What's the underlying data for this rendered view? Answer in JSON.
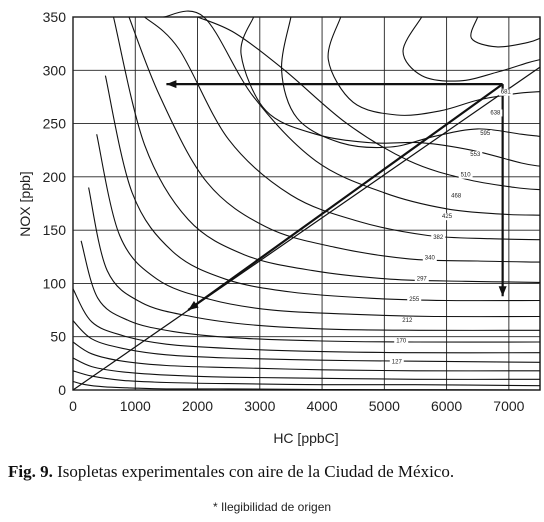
{
  "chart_data": {
    "type": "line",
    "xlabel": "HC [ppbC]",
    "ylabel": "NOX [ppb]",
    "xlim": [
      0,
      7500
    ],
    "ylim": [
      0,
      350
    ],
    "xticks": [
      "0",
      "1000",
      "2000",
      "3000",
      "4000",
      "5000",
      "6000",
      "7000"
    ],
    "yticks": [
      "0",
      "50",
      "100",
      "150",
      "200",
      "250",
      "300",
      "350"
    ],
    "grid": true,
    "isopleth_labels": [
      "127",
      "170",
      "212",
      "255",
      "297",
      "340",
      "382",
      "425",
      "468",
      "510",
      "553",
      "595",
      "638",
      "681"
    ],
    "diagonal_line": {
      "x": [
        0,
        7500
      ],
      "y": [
        0,
        303
      ]
    },
    "arrows": [
      {
        "from": [
          6900,
          287
        ],
        "to": [
          1500,
          287
        ]
      },
      {
        "from": [
          6900,
          287
        ],
        "to": [
          6900,
          88
        ]
      },
      {
        "from": [
          6900,
          287
        ],
        "to": [
          1850,
          75
        ]
      }
    ],
    "contours": [
      {
        "x": [
          0,
          200,
          500,
          900,
          1500,
          2500,
          4000,
          5500,
          7500
        ],
        "y": [
          8,
          5,
          3,
          2,
          1,
          1,
          0.5,
          0.3,
          0
        ]
      },
      {
        "x": [
          0,
          300,
          800,
          1500,
          2500,
          4000,
          5500,
          7500
        ],
        "y": [
          18,
          13,
          9,
          7,
          6,
          5,
          5,
          4
        ]
      },
      {
        "x": [
          0,
          300,
          800,
          1500,
          2500,
          4000,
          5500,
          7500
        ],
        "y": [
          30,
          22,
          17,
          14,
          12,
          11,
          10,
          10
        ]
      },
      {
        "x": [
          0,
          300,
          800,
          1500,
          2500,
          4000,
          5500,
          7500
        ],
        "y": [
          45,
          34,
          27,
          23,
          21,
          19,
          18,
          18
        ]
      },
      {
        "x": [
          0,
          300,
          800,
          1500,
          2500,
          4000,
          5500,
          7500
        ],
        "y": [
          65,
          48,
          39,
          33,
          30,
          28,
          27,
          26
        ]
      },
      {
        "x": [
          0,
          300,
          800,
          1500,
          2500,
          4000,
          5500,
          7500
        ],
        "y": [
          95,
          64,
          51,
          43,
          39,
          36,
          35,
          35
        ]
      },
      {
        "x": [
          130,
          400,
          900,
          1600,
          2600,
          4000,
          5500,
          7500
        ],
        "y": [
          140,
          86,
          65,
          55,
          49,
          46,
          45,
          45
        ]
      },
      {
        "x": [
          250,
          550,
          1100,
          1900,
          2900,
          4200,
          5600,
          7500
        ],
        "y": [
          190,
          112,
          82,
          69,
          61,
          57,
          56,
          56
        ]
      },
      {
        "x": [
          380,
          750,
          1350,
          2200,
          3200,
          4500,
          5800,
          7500
        ],
        "y": [
          240,
          145,
          104,
          85,
          75,
          71,
          69,
          69
        ]
      },
      {
        "x": [
          520,
          950,
          1600,
          2450,
          3500,
          4800,
          6000,
          7500
        ],
        "y": [
          295,
          185,
          130,
          104,
          92,
          86,
          84,
          84
        ]
      },
      {
        "x": [
          650,
          1150,
          1850,
          2750,
          3850,
          5100,
          6300,
          7500
        ],
        "y": [
          350,
          230,
          160,
          127,
          112,
          104,
          102,
          101
        ]
      },
      {
        "x": [
          900,
          1400,
          2150,
          3100,
          4200,
          5400,
          6500,
          7500
        ],
        "y": [
          350,
          275,
          195,
          153,
          134,
          123,
          121,
          120
        ]
      },
      {
        "x": [
          1150,
          1700,
          2500,
          3500,
          4600,
          5700,
          6700,
          7500
        ],
        "y": [
          350,
          320,
          235,
          183,
          158,
          145,
          142,
          141
        ]
      },
      {
        "x": [
          1450,
          2100,
          2900,
          3900,
          5000,
          6000,
          6900,
          7500
        ],
        "y": [
          350,
          350,
          275,
          215,
          185,
          170,
          165,
          164
        ]
      },
      {
        "x": [
          2000,
          2600,
          3400,
          4400,
          5400,
          6300,
          7100,
          7500
        ],
        "y": [
          350,
          335,
          300,
          250,
          215,
          198,
          190,
          188
        ]
      },
      {
        "x": [
          2900,
          2700,
          3100,
          3900,
          4800,
          5600,
          6400,
          7200,
          7500
        ],
        "y": [
          350,
          315,
          262,
          240,
          232,
          232,
          225,
          213,
          210
        ]
      },
      {
        "x": [
          3500,
          3350,
          3600,
          4300,
          5100,
          5800,
          6500,
          7200,
          7500
        ],
        "y": [
          350,
          300,
          255,
          232,
          228,
          238,
          245,
          240,
          238
        ]
      },
      {
        "x": [
          4300,
          4100,
          4500,
          5200,
          5900,
          6500,
          7100,
          7500
        ],
        "y": [
          350,
          310,
          270,
          258,
          262,
          272,
          278,
          280
        ]
      },
      {
        "x": [
          5600,
          5300,
          5600,
          6200,
          6800,
          7300,
          7500
        ],
        "y": [
          350,
          318,
          295,
          290,
          298,
          307,
          310
        ]
      },
      {
        "x": [
          6500,
          6400,
          6800,
          7300,
          7500
        ],
        "y": [
          350,
          330,
          322,
          326,
          330
        ]
      }
    ]
  },
  "caption": {
    "label": "Fig. 9.",
    "text": " Isopletas experimentales con aire de la Ciudad de México."
  },
  "note": "* Ilegibilidad de origen"
}
